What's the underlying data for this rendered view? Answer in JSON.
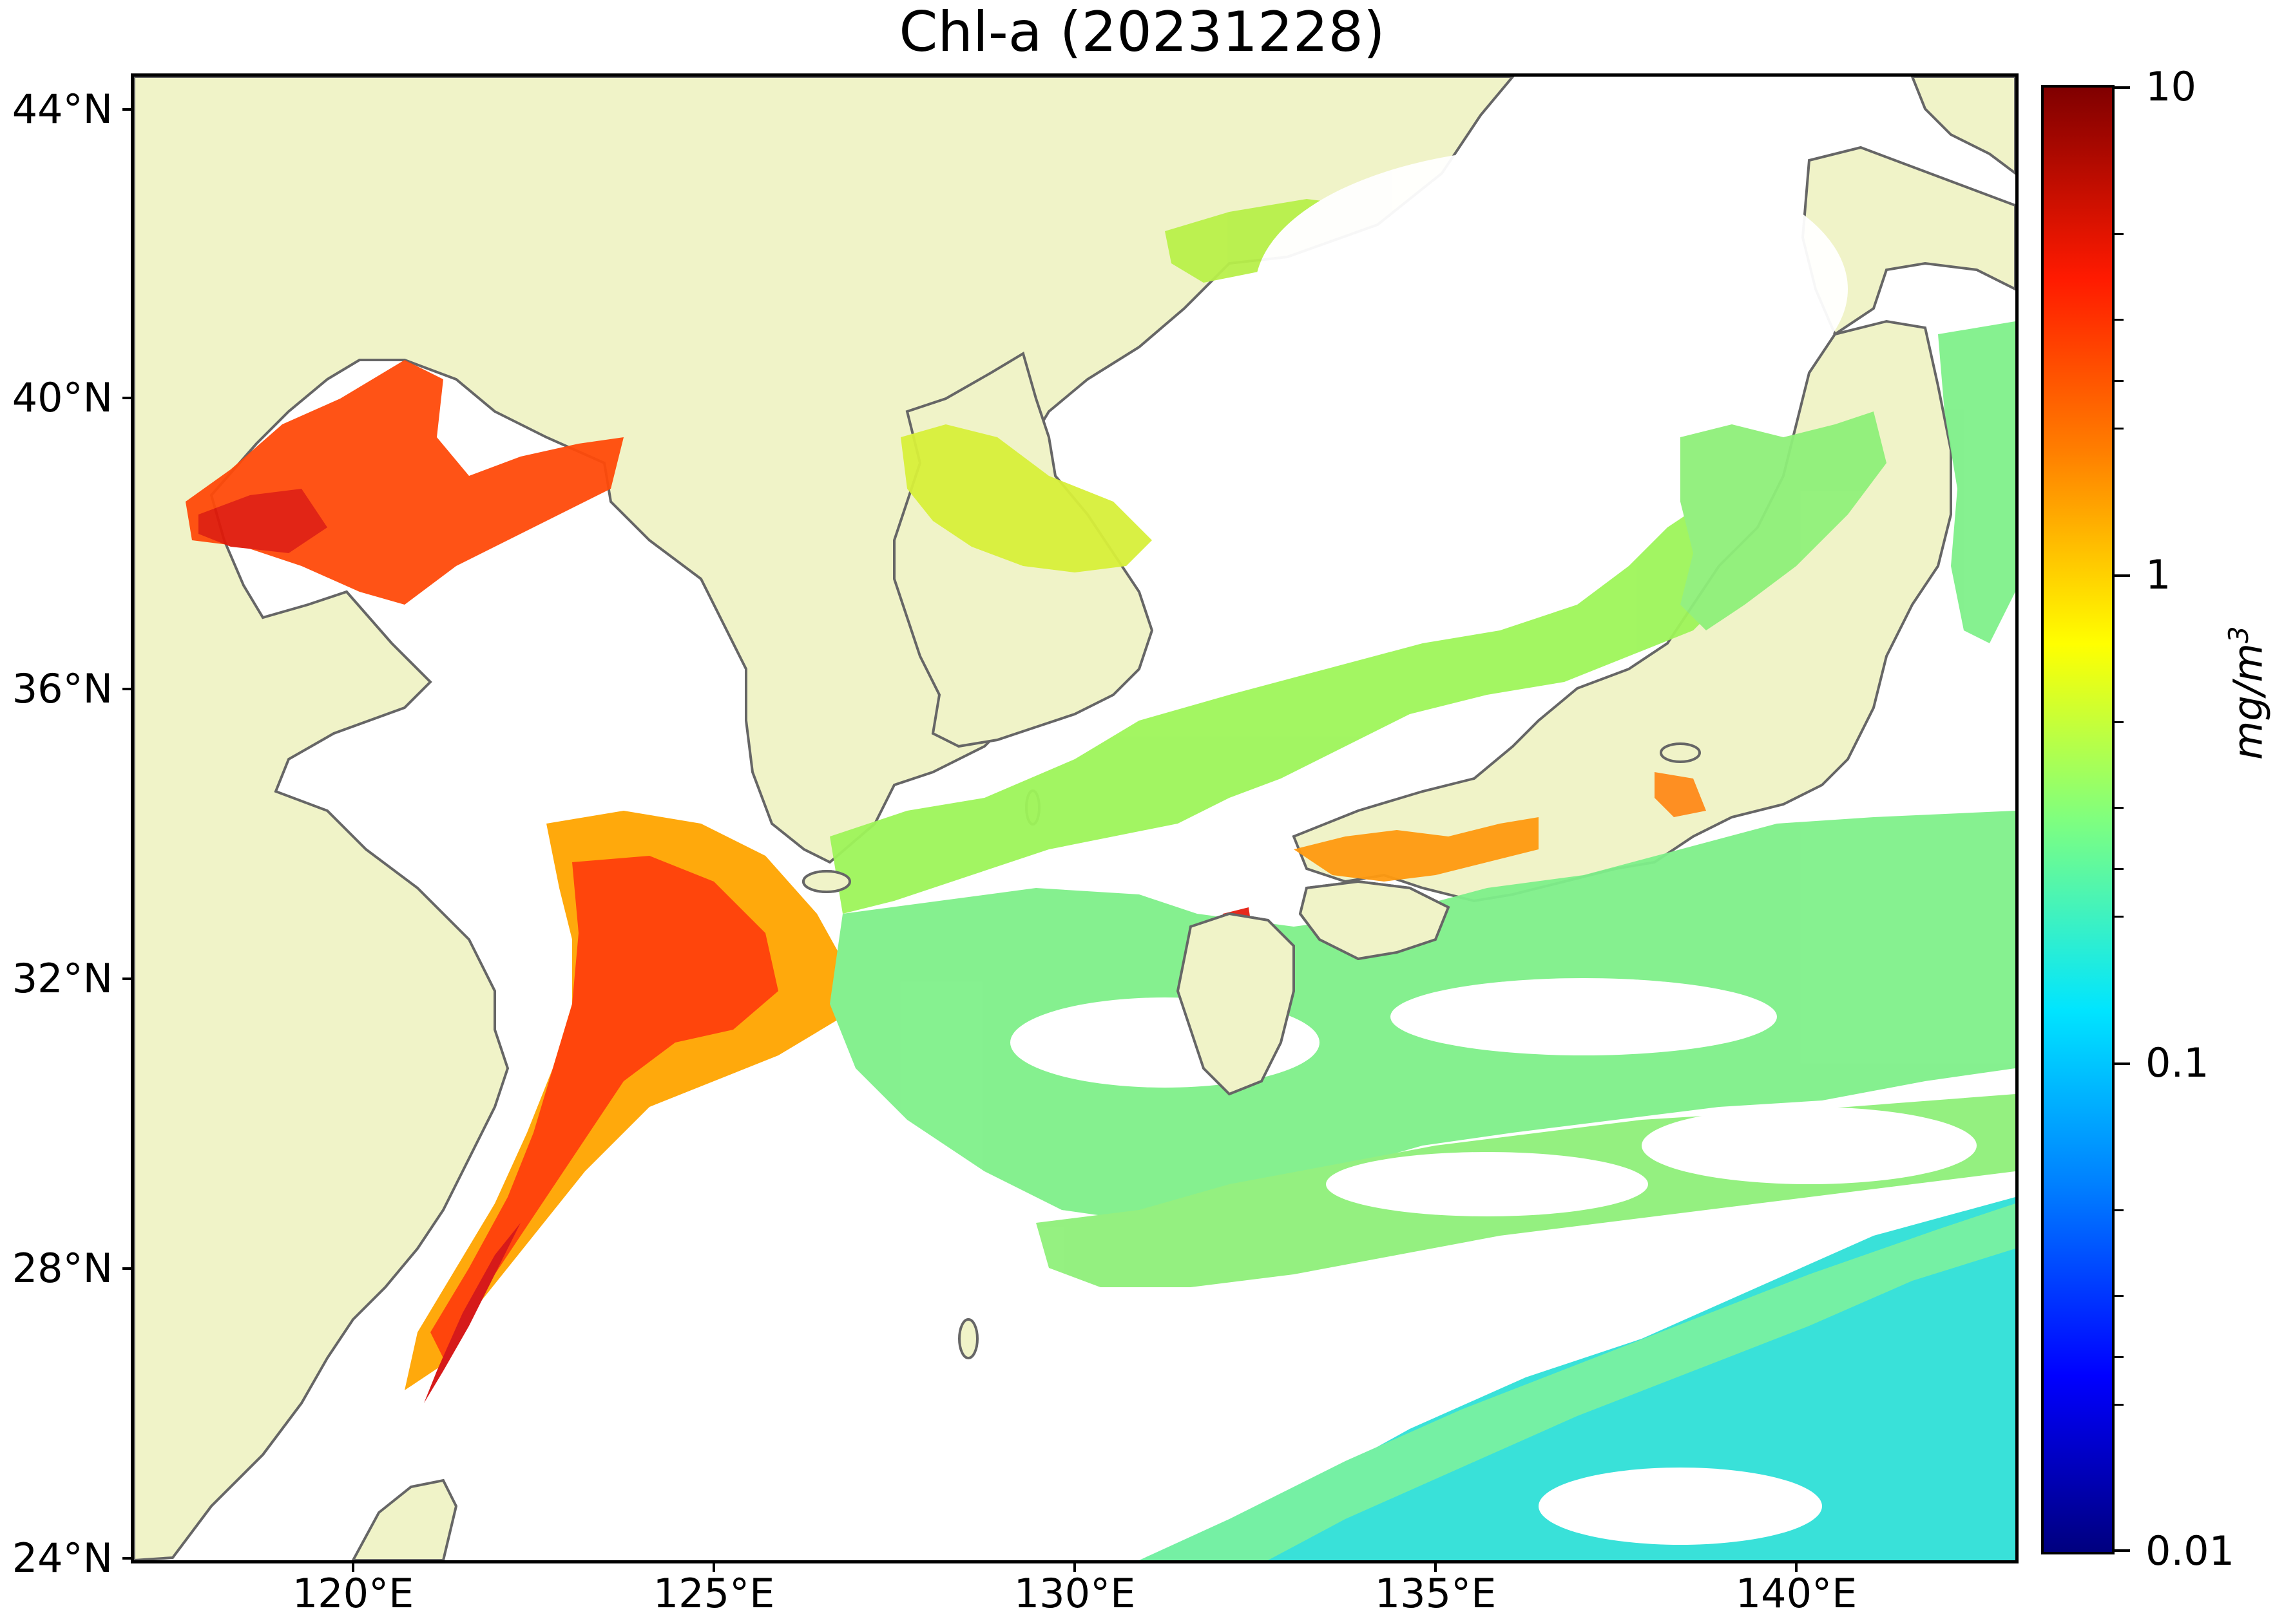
{
  "title": "Chl-a (20231228)",
  "map": {
    "land_color": "#f0f3c8",
    "coast_color": "#666666",
    "no_data_color": "#ffffff",
    "extent": {
      "lon": [
        116.5,
        143.0
      ],
      "lat": [
        24.0,
        44.5
      ]
    },
    "lat_labels": [
      "44°N",
      "40°N",
      "36°N",
      "32°N",
      "28°N",
      "24°N"
    ],
    "lon_labels": [
      "120°E",
      "125°E",
      "130°E",
      "135°E",
      "140°E"
    ]
  },
  "colorbar": {
    "scale": "log",
    "range": [
      0.01,
      10
    ],
    "tick_labels": [
      "10",
      "1",
      "0.1",
      "0.01"
    ],
    "colormap": "jet",
    "unit_label": "mg/m",
    "unit_exponent": "3"
  },
  "chart_data": {
    "type": "heatmap",
    "title": "Chl-a (20231228)",
    "xlabel": "",
    "ylabel": "",
    "x_ticks": [
      "120°E",
      "125°E",
      "130°E",
      "135°E",
      "140°E"
    ],
    "y_ticks": [
      "44°N",
      "40°N",
      "36°N",
      "32°N",
      "28°N",
      "24°N"
    ],
    "colorbar_ticks": [
      0.01,
      0.1,
      1,
      10
    ],
    "colorbar_label": "mg/m3"
  }
}
